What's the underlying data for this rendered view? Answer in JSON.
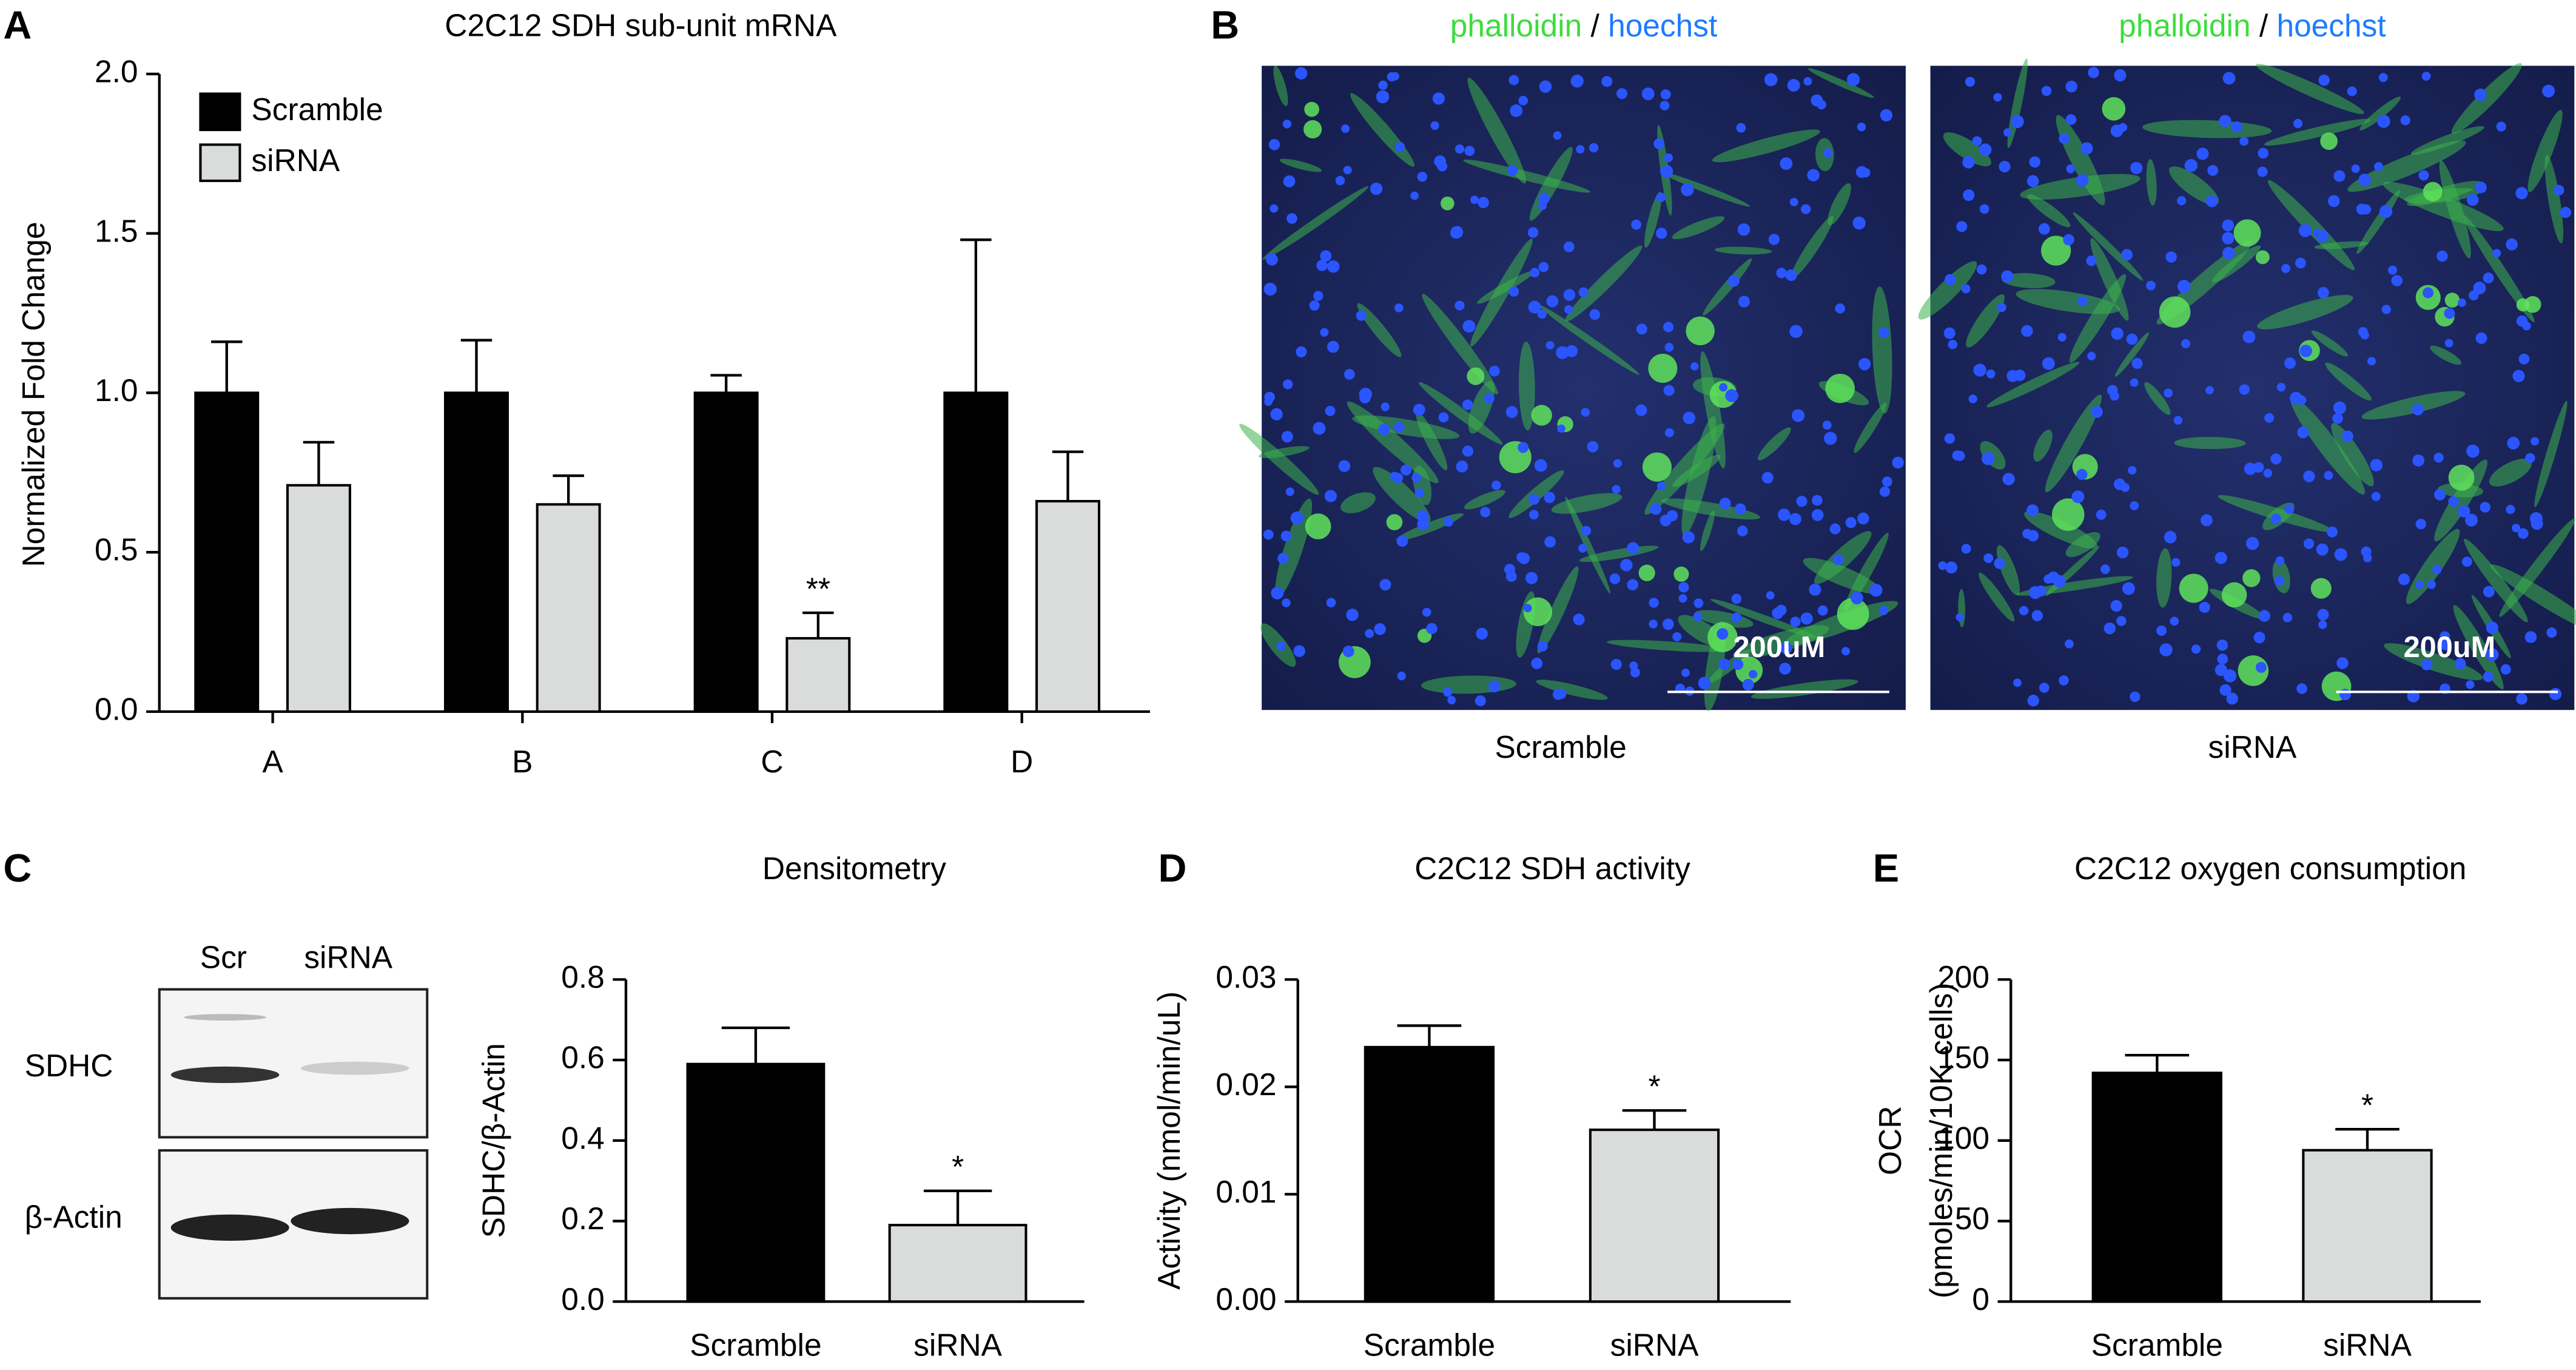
{
  "panel_labels": [
    "A",
    "B",
    "C",
    "D",
    "E"
  ],
  "microscopy": {
    "stain": {
      "green": "phalloidin",
      "separator": "/",
      "blue": "hoechst"
    },
    "conditions": [
      "Scramble",
      "siRNA"
    ],
    "scale_bar": "200uM"
  },
  "blot": {
    "lanes": [
      "Scr",
      "siRNA"
    ],
    "proteins": [
      "SDHC",
      "β-Actin"
    ]
  },
  "chart_data": [
    {
      "type": "bar",
      "title": "C2C12 SDH sub-unit mRNA",
      "y_label": "Normalized Fold Change",
      "categories": [
        "A",
        "B",
        "C",
        "D"
      ],
      "series": [
        {
          "name": "Scramble",
          "color": "#000000",
          "values": [
            1,
            1,
            1,
            1
          ],
          "errors": [
            0.16,
            0.165,
            0.055,
            0.48
          ]
        },
        {
          "name": "siRNA",
          "color": "#d9dcda",
          "values": [
            0.71,
            0.65,
            0.23,
            0.66
          ],
          "errors": [
            0.135,
            0.09,
            0.08,
            0.155
          ],
          "significance": [
            null,
            null,
            "**",
            null
          ]
        }
      ],
      "ylim": [
        0,
        2
      ],
      "yticks": [
        {
          "value": 0,
          "label": "0.0"
        },
        {
          "value": 0.5,
          "label": "0.5"
        },
        {
          "value": 1,
          "label": "1.0"
        },
        {
          "value": 1.5,
          "label": "1.5"
        },
        {
          "value": 2,
          "label": "2.0"
        }
      ],
      "legend": "upper-left"
    },
    {
      "type": "bar",
      "title": "Densitometry",
      "y_label": "SDHC/β-Actin",
      "categories": [
        "Scramble",
        "siRNA"
      ],
      "colors": [
        "#000000",
        "#d9dcda"
      ],
      "values": [
        0.59,
        0.19
      ],
      "errors": [
        0.09,
        0.085
      ],
      "significance": [
        null,
        "*"
      ],
      "ylim": [
        0,
        0.8
      ],
      "yticks": [
        {
          "value": 0,
          "label": "0.0"
        },
        {
          "value": 0.2,
          "label": "0.2"
        },
        {
          "value": 0.4,
          "label": "0.4"
        },
        {
          "value": 0.6,
          "label": "0.6"
        },
        {
          "value": 0.8,
          "label": "0.8"
        }
      ]
    },
    {
      "type": "bar",
      "title": "C2C12 SDH activity",
      "y_label": "Activity (nmol/min/uL)",
      "categories": [
        "Scramble",
        "siRNA"
      ],
      "colors": [
        "#000000",
        "#d9dcda"
      ],
      "values": [
        0.0237,
        0.016
      ],
      "errors": [
        0.002,
        0.0018
      ],
      "significance": [
        null,
        "*"
      ],
      "ylim": [
        0,
        0.03
      ],
      "yticks": [
        {
          "value": 0,
          "label": "0.00"
        },
        {
          "value": 0.01,
          "label": "0.01"
        },
        {
          "value": 0.02,
          "label": "0.02"
        },
        {
          "value": 0.03,
          "label": "0.03"
        }
      ]
    },
    {
      "type": "bar",
      "title": "C2C12 oxygen consumption",
      "y_label": [
        "OCR",
        "(pmoles/min/10K cells)"
      ],
      "categories": [
        "Scramble",
        "siRNA"
      ],
      "colors": [
        "#000000",
        "#d9dcda"
      ],
      "values": [
        142,
        94
      ],
      "errors": [
        11,
        13
      ],
      "significance": [
        null,
        "*"
      ],
      "ylim": [
        0,
        200
      ],
      "yticks": [
        0,
        50,
        100,
        150,
        200
      ]
    }
  ]
}
